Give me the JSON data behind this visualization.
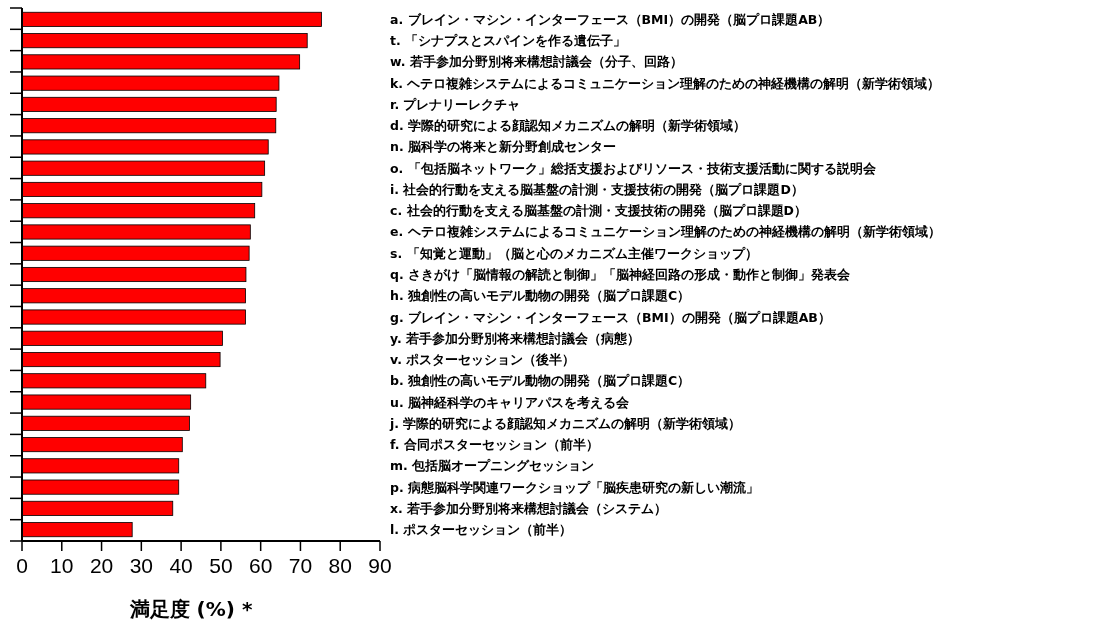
{
  "chart_data": {
    "type": "bar",
    "orientation": "horizontal",
    "xlabel": "満足度 (%) *",
    "categories": [
      "a. ブレイン・マシン・インターフェース（BMI）の開発（脳プロ課題AB）",
      "t. 「シナプスとスパインを作る遺伝子」",
      "w. 若手参加分野別将来構想討議会（分子、回路）",
      "k. ヘテロ複雑システムによるコミュニケーション理解のための神経機構の解明（新学術領域）",
      "r. プレナリーレクチャ",
      "d. 学際的研究による顔認知メカニズムの解明（新学術領域）",
      "n. 脳科学の将来と新分野創成センター",
      "o. 「包括脳ネットワーク」総括支援およびリソース・技術支援活動に関する説明会",
      "i. 社会的行動を支える脳基盤の計測・支援技術の開発（脳プロ課題D）",
      "c. 社会的行動を支える脳基盤の計測・支援技術の開発（脳プロ課題D）",
      "e. ヘテロ複雑システムによるコミュニケーション理解のための神経機構の解明（新学術領域）",
      "s. 「知覚と運動」（脳と心のメカニズム主催ワークショップ）",
      "q. さきがけ「脳情報の解読と制御」「脳神経回路の形成・動作と制御」発表会",
      "h. 独創性の高いモデル動物の開発（脳プロ課題C）",
      "g. ブレイン・マシン・インターフェース（BMI）の開発（脳プロ課題AB）",
      "y. 若手参加分野別将来構想討議会（病態）",
      "v. ポスターセッション（後半）",
      "b. 独創性の高いモデル動物の開発（脳プロ課題C）",
      "u. 脳神経科学のキャリアパスを考える会",
      "j. 学際的研究による顔認知メカニズムの解明（新学術領域）",
      "f. 合同ポスターセッション（前半）",
      "m. 包括脳オープニングセッション",
      "p. 病態脳科学関連ワークショップ「脳疾患研究の新しい潮流」",
      "x. 若手参加分野別将来構想討議会（システム）",
      "l. ポスターセッション（前半）"
    ],
    "values": [
      75.3,
      71.7,
      69.8,
      64.6,
      63.9,
      63.8,
      61.9,
      61.0,
      60.3,
      58.5,
      57.4,
      57.1,
      56.3,
      56.2,
      56.2,
      50.4,
      49.8,
      46.2,
      42.4,
      42.1,
      40.3,
      39.4,
      39.4,
      37.9,
      27.7
    ],
    "color": "#ff0000",
    "xlim": [
      0,
      90
    ],
    "xticks": [
      0,
      10,
      20,
      30,
      40,
      50,
      60,
      70,
      80,
      90
    ]
  }
}
